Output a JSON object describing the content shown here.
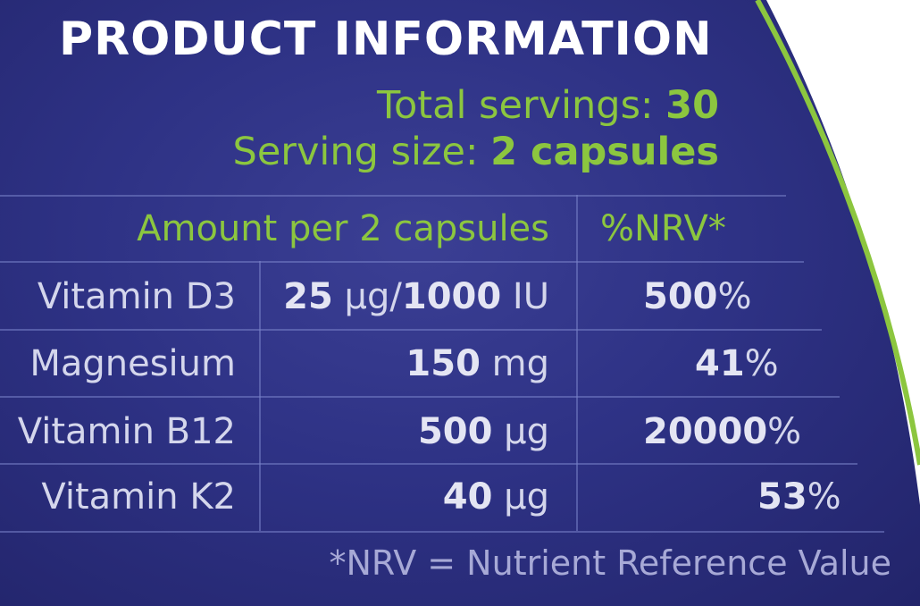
{
  "title": "PRODUCT INFORMATION",
  "servings": {
    "total_label": "Total servings: ",
    "total_value": "30",
    "size_label": "Serving size: ",
    "size_value": "2 capsules"
  },
  "table": {
    "header_amount": "Amount per 2 capsules",
    "header_nrv": "%NRV*",
    "rows": [
      {
        "nutrient": "Vitamin D3",
        "amount_part1": "25",
        "amount_part2": " µg/",
        "amount_part3": "1000",
        "amount_part4": " IU",
        "nrv_value": "500",
        "nrv_unit": "%"
      },
      {
        "nutrient": "Magnesium",
        "amount_value": "150",
        "amount_unit": " mg",
        "nrv_value": "41",
        "nrv_unit": "%"
      },
      {
        "nutrient": "Vitamin B12",
        "amount_value": "500",
        "amount_unit": " µg",
        "nrv_value": "20000",
        "nrv_unit": "%"
      },
      {
        "nutrient": "Vitamin K2",
        "amount_value": "40",
        "amount_unit": " µg",
        "nrv_value": "53",
        "nrv_unit": "%"
      }
    ]
  },
  "footnote": "*NRV = Nutrient Reference Value",
  "colors": {
    "background": "#2e3285",
    "accent_green": "#8cc63f",
    "curve_white": "#ffffff"
  }
}
